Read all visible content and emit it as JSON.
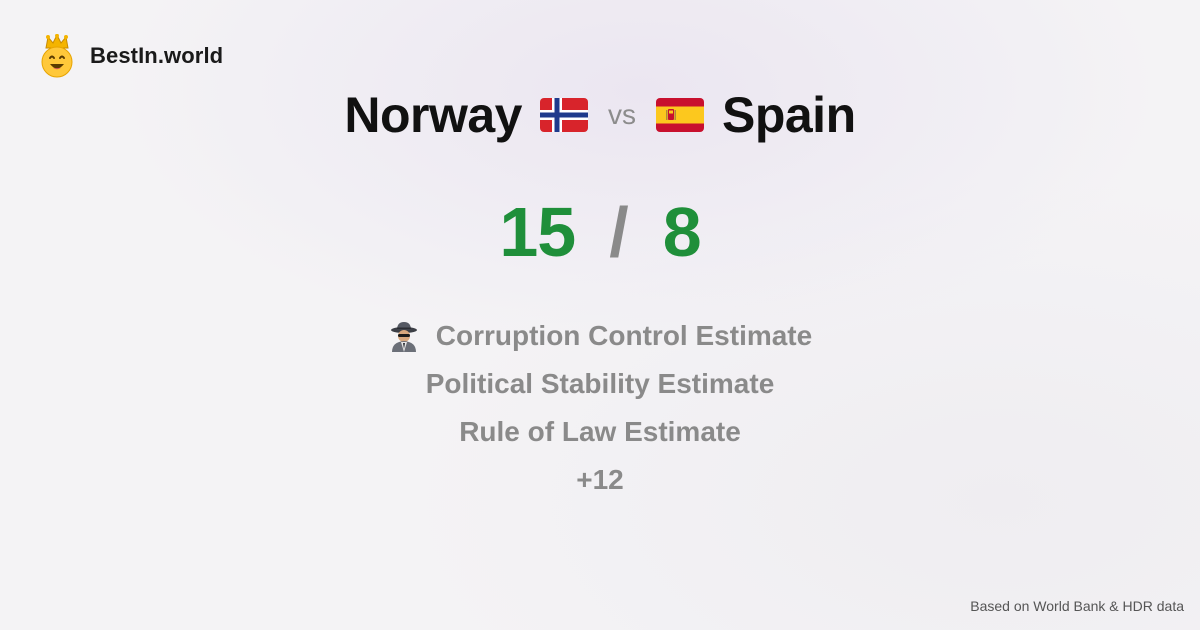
{
  "brand": {
    "name": "BestIn.world",
    "icon": "crown-smiley-icon"
  },
  "comparison": {
    "left": {
      "country": "Norway",
      "flag": "norway-flag-icon",
      "score": "15"
    },
    "vs_label": "vs",
    "right": {
      "country": "Spain",
      "flag": "spain-flag-icon",
      "score": "8"
    },
    "separator": "/"
  },
  "metrics": [
    {
      "label": "Corruption Control Estimate",
      "icon": "spy-detective-icon"
    },
    {
      "label": "Political Stability Estimate"
    },
    {
      "label": "Rule of Law Estimate"
    }
  ],
  "more_label": "+12",
  "footer": {
    "source": "Based on World Bank & HDR data"
  },
  "colors": {
    "score": "#1f8f3a",
    "muted": "#8a8a8a",
    "title": "#111111"
  }
}
